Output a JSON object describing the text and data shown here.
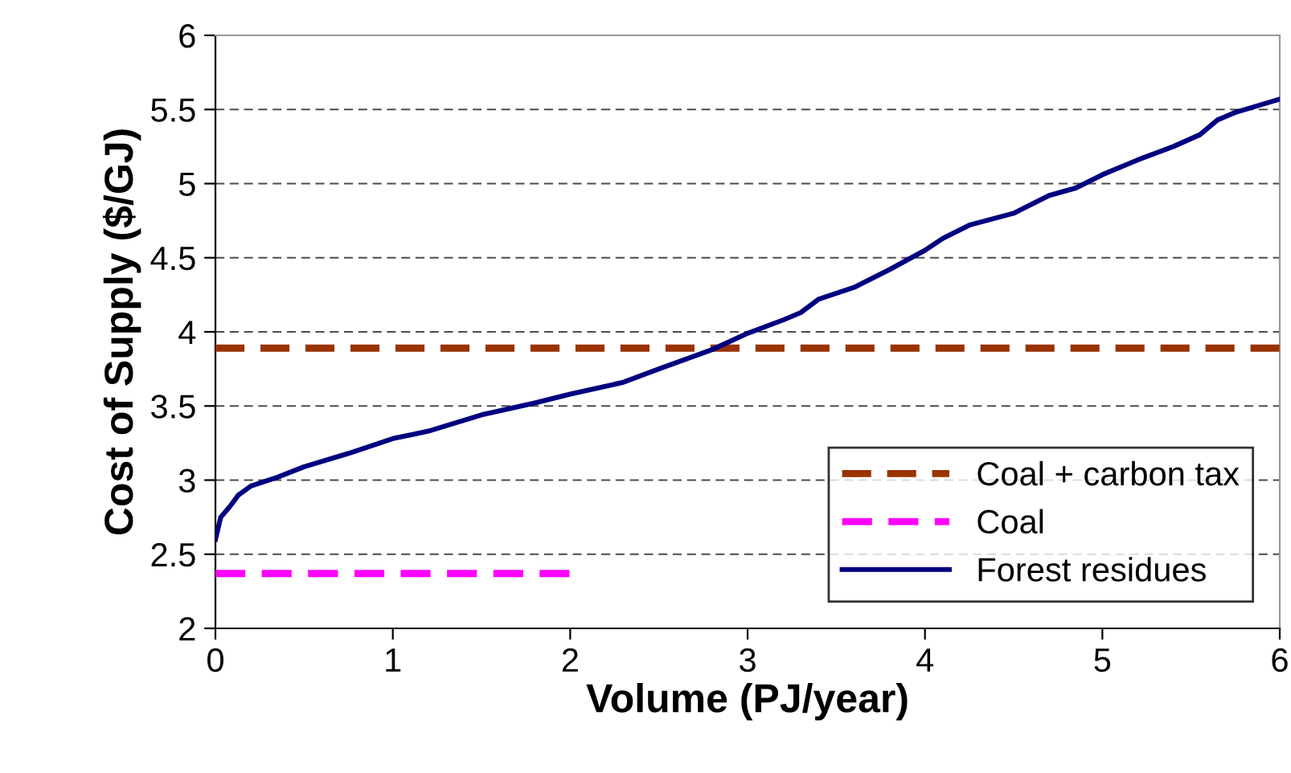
{
  "chart_data": {
    "type": "line",
    "xlabel": "Volume (PJ/year)",
    "ylabel": "Cost of Supply ($/GJ)",
    "xlim": [
      0,
      6
    ],
    "xticks": [
      0,
      1,
      2,
      3,
      4,
      5,
      6
    ],
    "ylim": [
      2,
      6
    ],
    "yticks": [
      2,
      2.5,
      3,
      3.5,
      4,
      4.5,
      5,
      5.5,
      6
    ],
    "grid": "y",
    "legend": "bottom right",
    "series": [
      {
        "name": "Coal + carbon tax",
        "color": "#993300",
        "line_style": "dashed",
        "x": [
          0,
          6
        ],
        "values": [
          3.89,
          3.89
        ]
      },
      {
        "name": "Coal",
        "color": "#ff00ff",
        "line_style": "dashed",
        "x": [
          0,
          2.0
        ],
        "values": [
          2.37,
          2.37
        ]
      },
      {
        "name": "Forest residues",
        "color": "#000080",
        "line_style": "solid",
        "x": [
          0,
          0.03,
          0.08,
          0.13,
          0.2,
          0.35,
          0.5,
          0.75,
          1.0,
          1.2,
          1.5,
          1.8,
          2.0,
          2.3,
          2.5,
          2.8,
          3.0,
          3.2,
          3.3,
          3.4,
          3.6,
          3.8,
          4.0,
          4.1,
          4.25,
          4.5,
          4.7,
          4.85,
          5.0,
          5.2,
          5.4,
          5.55,
          5.65,
          5.75,
          6.0
        ],
        "values": [
          2.6,
          2.75,
          2.82,
          2.9,
          2.96,
          3.02,
          3.09,
          3.18,
          3.28,
          3.33,
          3.44,
          3.52,
          3.58,
          3.66,
          3.75,
          3.88,
          3.99,
          4.08,
          4.13,
          4.22,
          4.3,
          4.42,
          4.55,
          4.63,
          4.72,
          4.8,
          4.92,
          4.97,
          5.06,
          5.16,
          5.25,
          5.33,
          5.43,
          5.48,
          5.57
        ]
      }
    ]
  }
}
